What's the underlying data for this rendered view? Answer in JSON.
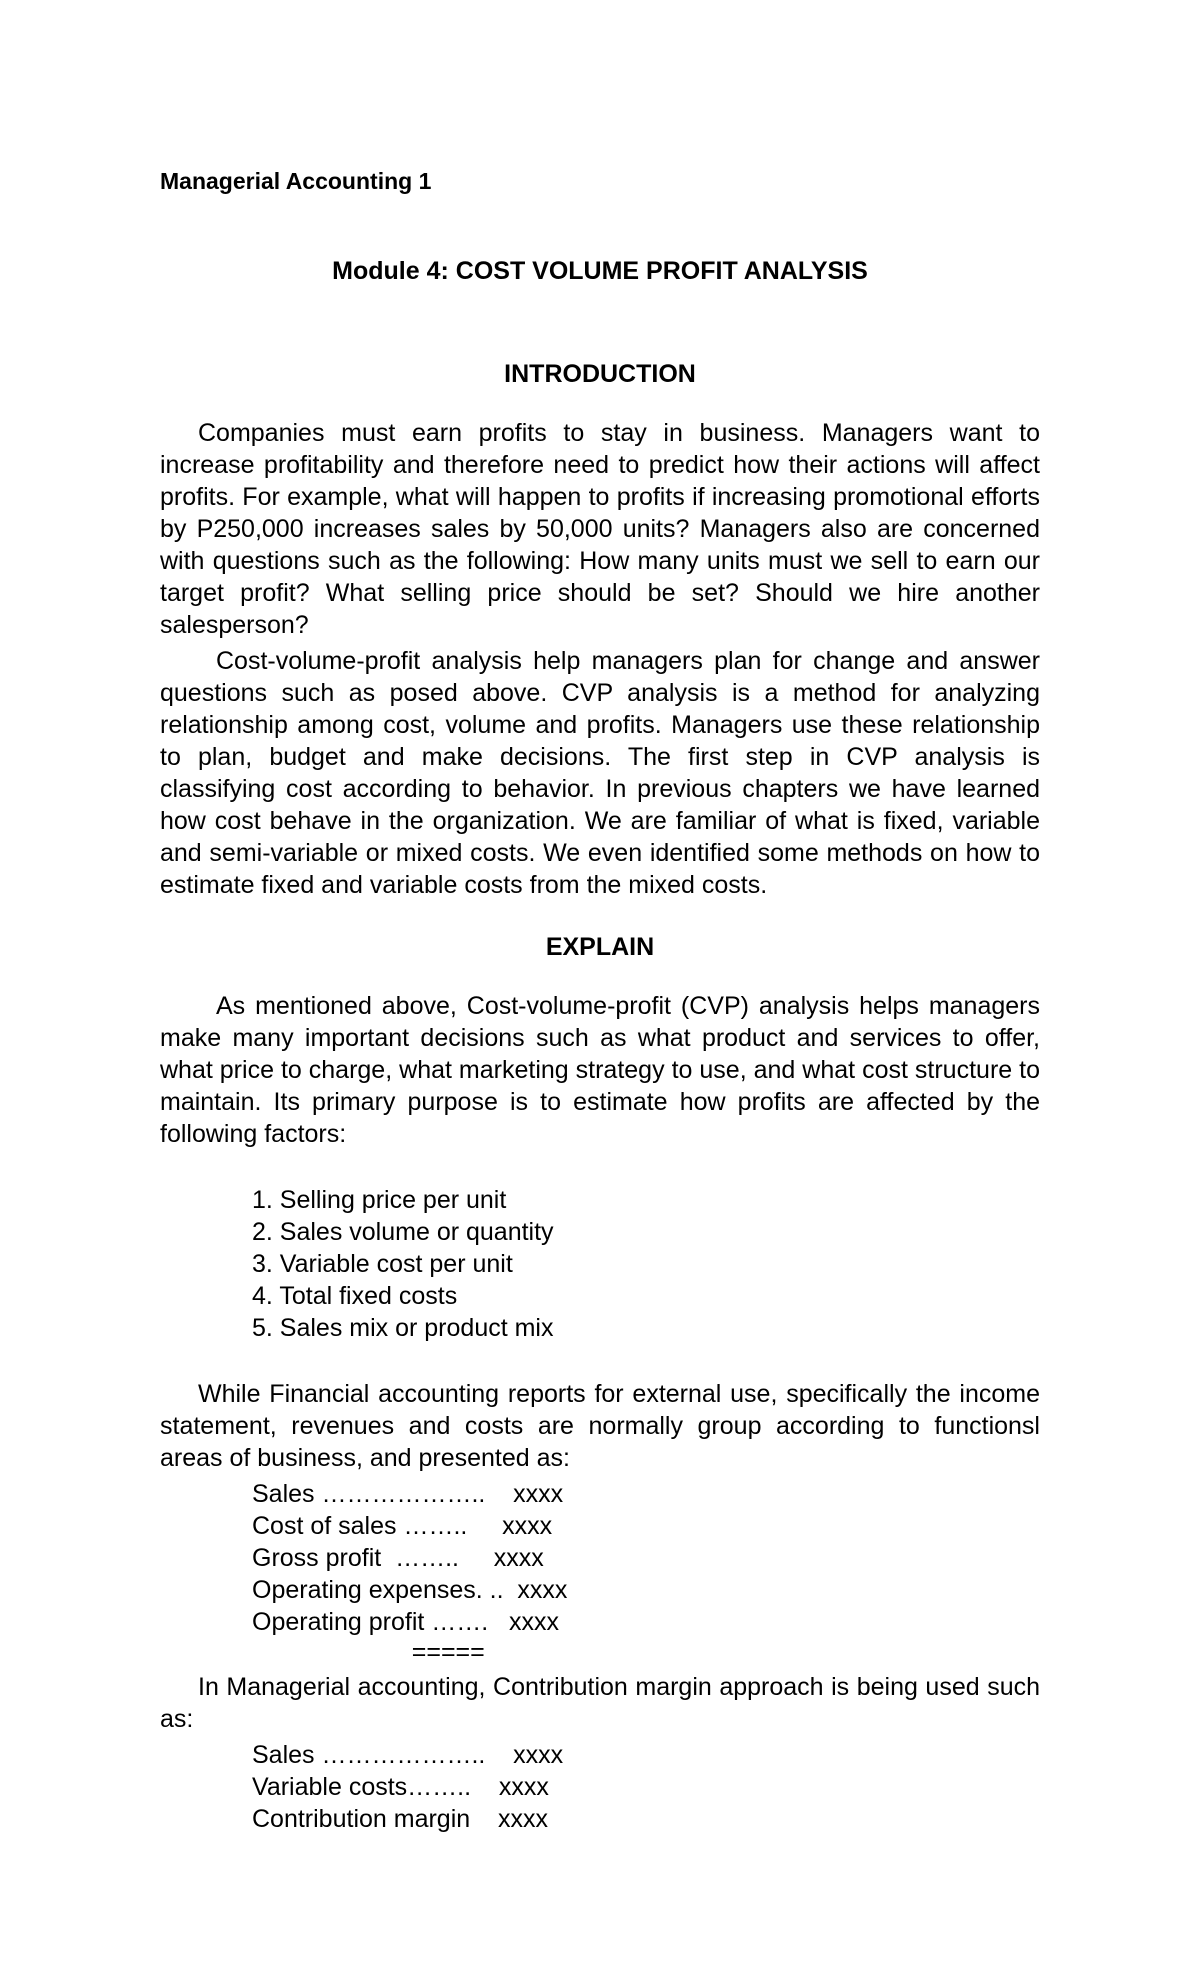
{
  "header": {
    "course": "Managerial Accounting 1"
  },
  "title": "Module 4:  COST VOLUME PROFIT ANALYSIS",
  "sections": {
    "introduction": {
      "heading": "INTRODUCTION",
      "p1": "Companies must earn profits to stay in business. Managers want to increase profitability and therefore need to predict how their actions will affect profits. For example, what will happen to profits if increasing promotional efforts by P250,000 increases sales by 50,000 units? Managers also are concerned with questions such as the following: How many units must we sell to earn our target profit? What selling price should be set? Should we hire another salesperson?",
      "p2": "Cost-volume-profit analysis help managers plan for change and answer questions such as posed above. CVP analysis is a method for analyzing relationship among cost, volume and profits. Managers use these relationship to plan, budget and make decisions. The first step in CVP analysis is classifying cost according to behavior. In previous chapters we have learned how cost behave in the organization. We are familiar of what is fixed, variable and semi-variable or mixed costs. We even identified some methods on how to estimate fixed and variable costs from the mixed costs."
    },
    "explain": {
      "heading": "EXPLAIN",
      "p1": "As mentioned above, Cost-volume-profit (CVP) analysis helps managers make many important decisions such as what product and services to offer, what price to charge, what marketing strategy to use, and what cost structure to maintain. Its primary purpose is to estimate how profits are affected by the following factors:",
      "factors": {
        "f1": "1. Selling price per unit",
        "f2": "2. Sales volume or quantity",
        "f3": "3. Variable cost per unit",
        "f4": "4. Total fixed costs",
        "f5": "5. Sales mix or product mix"
      },
      "p2": "While Financial accounting reports for external use, specifically the income statement, revenues and costs are normally group according to functionsl areas of business, and presented as:",
      "financial_lines": {
        "l1": "Sales ………………..    xxxx",
        "l2": "Cost of sales ……..     xxxx",
        "l3": "Gross profit  ……..     xxxx",
        "l4": "Operating expenses. ..  xxxx",
        "l5": "Operating profit …….   xxxx",
        "underline": "                       ====="
      },
      "p3": "In Managerial accounting, Contribution margin approach is being used such as:",
      "managerial_lines": {
        "l1": "Sales ………………..    xxxx",
        "l2": "Variable costs……..    xxxx",
        "l3": "Contribution margin    xxxx"
      }
    }
  }
}
